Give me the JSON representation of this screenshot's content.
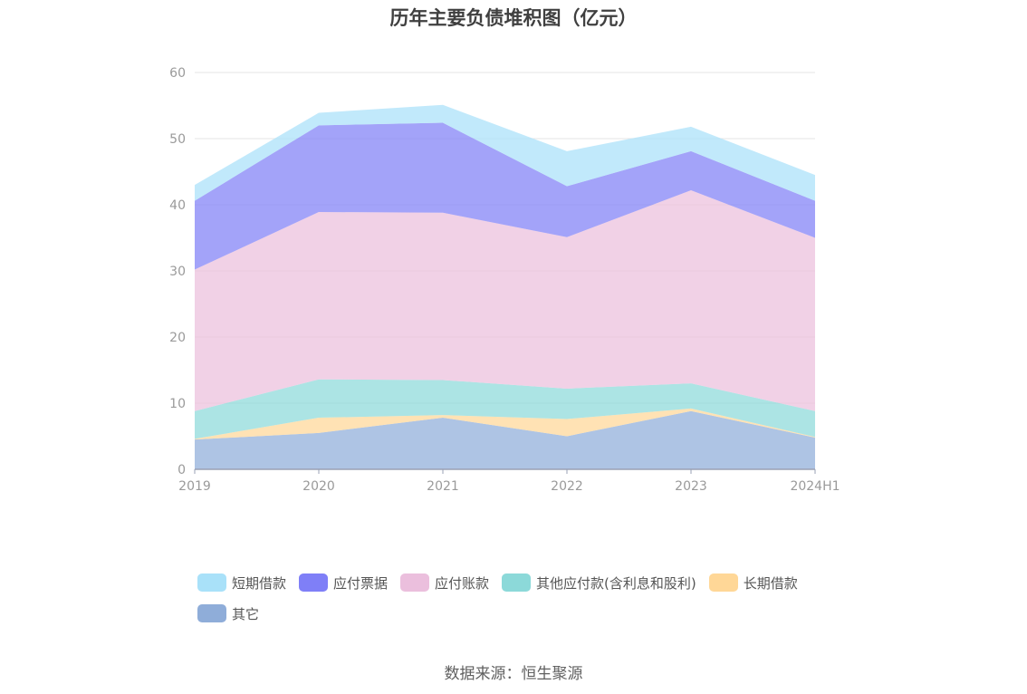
{
  "chart_data": {
    "type": "area",
    "stacked": true,
    "title": "历年主要负债堆积图（亿元）",
    "categories": [
      "2019",
      "2020",
      "2021",
      "2022",
      "2023",
      "2024H1"
    ],
    "y_ticks": [
      "0",
      "10",
      "20",
      "30",
      "40",
      "50",
      "60"
    ],
    "ylim": [
      0,
      60
    ],
    "grid": true,
    "legend_position": "bottom",
    "series": [
      {
        "name": "其它",
        "color": "#8fadd9",
        "values": [
          4.5,
          5.5,
          7.8,
          5.0,
          8.8,
          4.8
        ]
      },
      {
        "name": "长期借款",
        "color": "#ffd797",
        "values": [
          0.1,
          2.3,
          0.4,
          2.6,
          0.4,
          0.1
        ]
      },
      {
        "name": "其他应付款(含利息和股利)",
        "color": "#8cd9d9",
        "values": [
          4.2,
          5.8,
          5.3,
          4.6,
          3.8,
          3.9
        ]
      },
      {
        "name": "应付账款",
        "color": "#ebbfdd",
        "values": [
          21.4,
          25.3,
          25.3,
          22.9,
          29.2,
          26.2
        ]
      },
      {
        "name": "应付票据",
        "color": "#7f7ff7",
        "values": [
          10.4,
          13.1,
          13.6,
          7.7,
          5.9,
          5.6
        ]
      },
      {
        "name": "短期借款",
        "color": "#a9e1f9",
        "values": [
          2.4,
          1.9,
          2.7,
          5.3,
          3.7,
          3.9
        ]
      }
    ],
    "legend_order": [
      "短期借款",
      "应付票据",
      "应付账款",
      "其他应付款(含利息和股利)",
      "长期借款",
      "其它"
    ]
  },
  "source": "数据来源：恒生聚源"
}
